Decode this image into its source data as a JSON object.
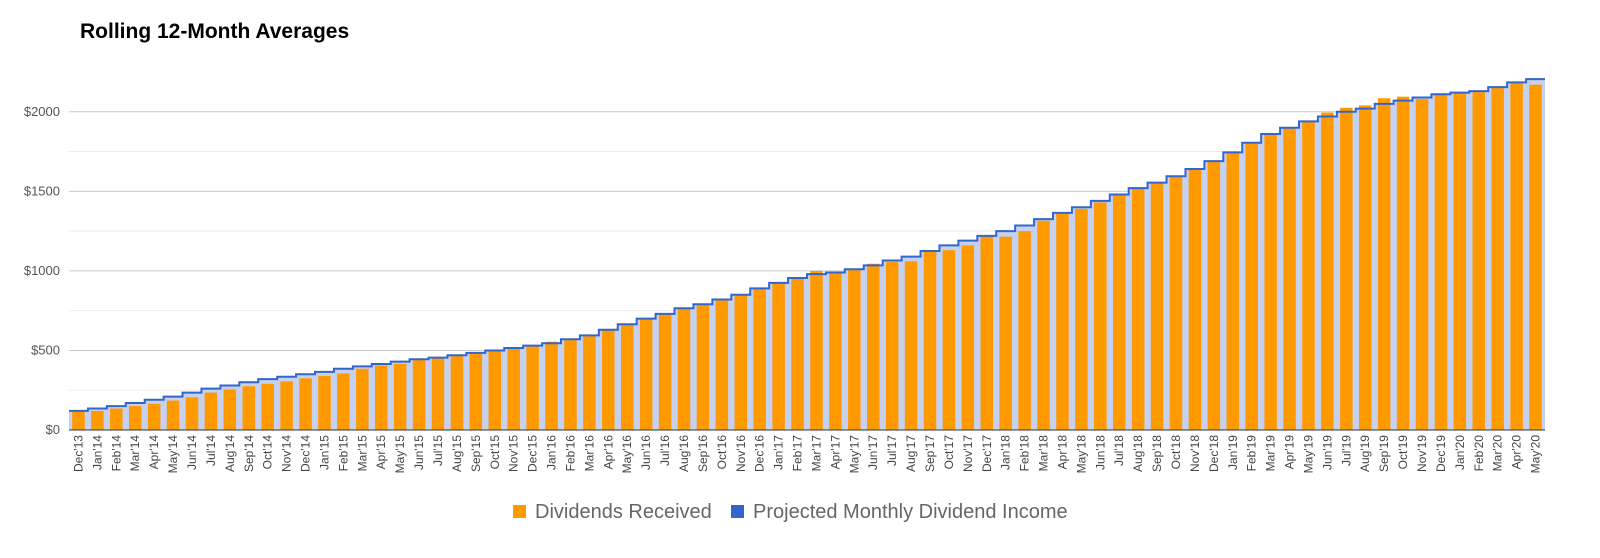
{
  "chart_data": {
    "type": "bar",
    "title": "Rolling 12-Month Averages",
    "xlabel": "",
    "ylabel": "",
    "ylim": [
      0,
      2250
    ],
    "yticks": [
      0,
      500,
      1000,
      1500,
      2000
    ],
    "ytick_labels": [
      "$0",
      "$500",
      "$1000",
      "$1500",
      "$2000"
    ],
    "grid": true,
    "legend_position": "bottom",
    "categories": [
      "Dec'13",
      "Jan'14",
      "Feb'14",
      "Mar'14",
      "Apr'14",
      "May'14",
      "Jun'14",
      "Jul'14",
      "Aug'14",
      "Sep'14",
      "Oct'14",
      "Nov'14",
      "Dec'14",
      "Jan'15",
      "Feb'15",
      "Mar'15",
      "Apr'15",
      "May'15",
      "Jun'15",
      "Jul'15",
      "Aug'15",
      "Sep'15",
      "Oct'15",
      "Nov'15",
      "Dec'15",
      "Jan'16",
      "Feb'16",
      "Mar'16",
      "Apr'16",
      "May'16",
      "Jun'16",
      "Jul'16",
      "Aug'16",
      "Sep'16",
      "Oct'16",
      "Nov'16",
      "Dec'16",
      "Jan'17",
      "Feb'17",
      "Mar'17",
      "Apr'17",
      "May'17",
      "Jun'17",
      "Jul'17",
      "Aug'17",
      "Sep'17",
      "Oct'17",
      "Nov'17",
      "Dec'17",
      "Jan'18",
      "Feb'18",
      "Mar'18",
      "Apr'18",
      "May'18",
      "Jun'18",
      "Jul'18",
      "Aug'18",
      "Sep'18",
      "Oct'18",
      "Nov'18",
      "Dec'18",
      "Jan'19",
      "Feb'19",
      "Mar'19",
      "Apr'19",
      "May'19",
      "Jun'19",
      "Jul'19",
      "Aug'19",
      "Sep'19",
      "Oct'19",
      "Nov'19",
      "Dec'19",
      "Jan'20",
      "Feb'20",
      "Mar'20",
      "Apr'20",
      "May'20"
    ],
    "series": [
      {
        "name": "Dividends Received",
        "type": "bar",
        "color": "#ff9900",
        "values": [
          115,
          120,
          135,
          150,
          165,
          185,
          205,
          235,
          255,
          275,
          290,
          305,
          325,
          340,
          355,
          385,
          405,
          415,
          440,
          450,
          465,
          485,
          495,
          515,
          530,
          555,
          565,
          600,
          630,
          665,
          695,
          735,
          760,
          790,
          820,
          845,
          885,
          930,
          950,
          1000,
          985,
          1005,
          1045,
          1055,
          1060,
          1125,
          1130,
          1160,
          1220,
          1215,
          1250,
          1315,
          1360,
          1390,
          1430,
          1485,
          1520,
          1550,
          1590,
          1635,
          1690,
          1745,
          1800,
          1860,
          1900,
          1935,
          1995,
          2025,
          2040,
          2085,
          2095,
          2080,
          2115,
          2125,
          2125,
          2150,
          2180,
          2170
        ]
      },
      {
        "name": "Projected Monthly Dividend Income",
        "type": "area-step",
        "color": "#3366cc",
        "fill": "#c5d1ee",
        "values": [
          120,
          135,
          150,
          170,
          190,
          210,
          235,
          260,
          280,
          300,
          320,
          335,
          350,
          365,
          385,
          400,
          415,
          430,
          445,
          455,
          470,
          485,
          500,
          515,
          530,
          545,
          570,
          595,
          630,
          665,
          700,
          730,
          765,
          790,
          820,
          850,
          890,
          925,
          955,
          980,
          990,
          1010,
          1035,
          1065,
          1090,
          1125,
          1160,
          1190,
          1220,
          1250,
          1285,
          1325,
          1365,
          1400,
          1440,
          1480,
          1520,
          1555,
          1595,
          1640,
          1690,
          1745,
          1805,
          1860,
          1900,
          1940,
          1970,
          2000,
          2020,
          2050,
          2070,
          2090,
          2110,
          2120,
          2130,
          2155,
          2185,
          2205
        ]
      }
    ]
  },
  "legend": {
    "items": [
      {
        "label": "Dividends Received",
        "color": "#ff9900"
      },
      {
        "label": "Projected Monthly Dividend Income",
        "color": "#3366cc"
      }
    ]
  }
}
